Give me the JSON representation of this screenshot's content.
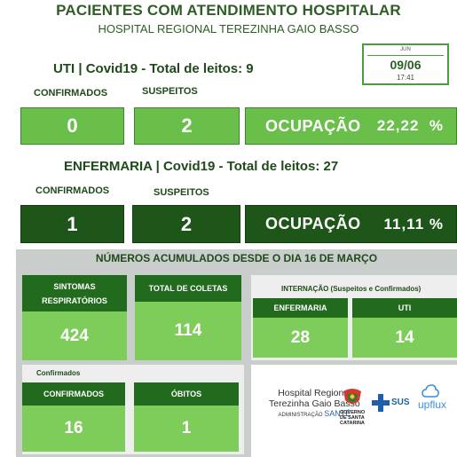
{
  "header": {
    "title": "PACIENTES COM ATENDIMENTO HOSPITALAR",
    "subtitle": "HOSPITAL REGIONAL TEREZINHA GAIO BASSO"
  },
  "date": {
    "month": "JUN",
    "day": "09/06",
    "time": "17:41"
  },
  "uti": {
    "heading": "UTI | Covid19 - Total de leitos: 9",
    "confirmed_label": "CONFIRMADOS",
    "suspected_label": "SUSPEITOS",
    "confirmed": "0",
    "suspected": "2",
    "occupancy_label": "OCUPAÇÃO",
    "occupancy_value": "22,22  %"
  },
  "enfermaria": {
    "heading": "ENFERMARIA | Covid19 - Total de leitos: 27",
    "confirmed_label": "CONFIRMADOS",
    "suspected_label": "SUSPEITOS",
    "confirmed": "1",
    "suspected": "2",
    "occupancy_label": "OCUPAÇÃO",
    "occupancy_value": "11,11 %"
  },
  "accumulated": {
    "title": "NÚMEROS ACUMULADOS DESDE O DIA 16 DE MARÇO",
    "sintomas_label_1": "SINTOMAS",
    "sintomas_label_2": "RESPIRATÓRIOS",
    "sintomas_value": "424",
    "coletas_label": "TOTAL DE COLETAS",
    "coletas_value": "114",
    "internacao_title": "INTERNAÇÃO  (Suspeitos e Confirmados)",
    "internacao_enf_label": "ENFERMARIA",
    "internacao_enf_value": "28",
    "internacao_uti_label": "UTI",
    "internacao_uti_value": "14",
    "confirmados_caption": "Confirmados",
    "confirmados_label": "CONFIRMADOS",
    "confirmados_value": "16",
    "obitos_label": "ÓBITOS",
    "obitos_value": "1"
  },
  "logos": {
    "hospital_line1": "Hospital Regional",
    "hospital_line2": "Terezinha Gaio Basso",
    "hospital_line3a": "ADMINISTRAÇÃO",
    "hospital_line3b": "SANTÉ",
    "gov_line1": "GOVERNO",
    "gov_line2": "DE SANTA",
    "gov_line3": "CATARINA",
    "sus": "SUS",
    "upflux": "upflux"
  },
  "colors": {
    "light_green": "#6abf4b",
    "dark_green": "#1e5619",
    "card_header": "#216a1e",
    "card_value": "#7ecc5a",
    "panel_gray": "#c9cdcb"
  }
}
